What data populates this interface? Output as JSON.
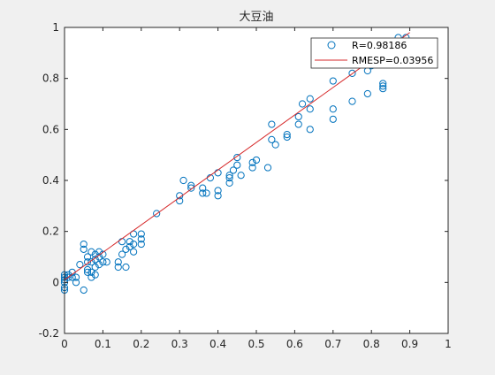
{
  "chart_data": {
    "type": "scatter",
    "title": "大豆油",
    "xlabel": "",
    "ylabel": "",
    "xlim": [
      0,
      1
    ],
    "ylim": [
      -0.2,
      1
    ],
    "xticks": [
      "0",
      "0.1",
      "0.2",
      "0.3",
      "0.4",
      "0.5",
      "0.6",
      "0.7",
      "0.8",
      "0.9",
      "1"
    ],
    "yticks": [
      "-0.2",
      "0",
      "0.2",
      "0.4",
      "0.6",
      "0.8",
      "1"
    ],
    "grid": false,
    "legend_position": "top-right",
    "series": [
      {
        "name": "R=0.98186",
        "kind": "scatter",
        "marker": "circle-open",
        "color": "#0072bd",
        "points": [
          [
            0.0,
            -0.03
          ],
          [
            0.0,
            -0.02
          ],
          [
            0.0,
            0.0
          ],
          [
            0.0,
            0.01
          ],
          [
            0.0,
            0.02
          ],
          [
            0.0,
            0.03
          ],
          [
            0.01,
            0.03
          ],
          [
            0.01,
            0.02
          ],
          [
            0.02,
            0.04
          ],
          [
            0.02,
            0.02
          ],
          [
            0.03,
            0.0
          ],
          [
            0.03,
            0.02
          ],
          [
            0.04,
            0.07
          ],
          [
            0.05,
            0.13
          ],
          [
            0.05,
            0.15
          ],
          [
            0.05,
            -0.03
          ],
          [
            0.06,
            0.08
          ],
          [
            0.06,
            0.1
          ],
          [
            0.06,
            0.05
          ],
          [
            0.06,
            0.04
          ],
          [
            0.07,
            0.08
          ],
          [
            0.07,
            0.12
          ],
          [
            0.07,
            0.04
          ],
          [
            0.07,
            0.02
          ],
          [
            0.08,
            0.11
          ],
          [
            0.08,
            0.09
          ],
          [
            0.08,
            0.06
          ],
          [
            0.08,
            0.03
          ],
          [
            0.09,
            0.1
          ],
          [
            0.09,
            0.12
          ],
          [
            0.09,
            0.07
          ],
          [
            0.1,
            0.11
          ],
          [
            0.1,
            0.08
          ],
          [
            0.11,
            0.08
          ],
          [
            0.14,
            0.06
          ],
          [
            0.14,
            0.08
          ],
          [
            0.15,
            0.11
          ],
          [
            0.15,
            0.16
          ],
          [
            0.16,
            0.06
          ],
          [
            0.16,
            0.13
          ],
          [
            0.17,
            0.16
          ],
          [
            0.17,
            0.14
          ],
          [
            0.18,
            0.12
          ],
          [
            0.18,
            0.19
          ],
          [
            0.18,
            0.15
          ],
          [
            0.2,
            0.15
          ],
          [
            0.2,
            0.17
          ],
          [
            0.2,
            0.19
          ],
          [
            0.24,
            0.27
          ],
          [
            0.3,
            0.32
          ],
          [
            0.3,
            0.34
          ],
          [
            0.31,
            0.4
          ],
          [
            0.33,
            0.37
          ],
          [
            0.33,
            0.38
          ],
          [
            0.36,
            0.35
          ],
          [
            0.36,
            0.37
          ],
          [
            0.37,
            0.35
          ],
          [
            0.38,
            0.41
          ],
          [
            0.4,
            0.36
          ],
          [
            0.4,
            0.34
          ],
          [
            0.4,
            0.43
          ],
          [
            0.43,
            0.41
          ],
          [
            0.43,
            0.42
          ],
          [
            0.43,
            0.39
          ],
          [
            0.44,
            0.44
          ],
          [
            0.45,
            0.46
          ],
          [
            0.45,
            0.49
          ],
          [
            0.46,
            0.42
          ],
          [
            0.49,
            0.45
          ],
          [
            0.49,
            0.47
          ],
          [
            0.5,
            0.48
          ],
          [
            0.53,
            0.45
          ],
          [
            0.54,
            0.56
          ],
          [
            0.54,
            0.62
          ],
          [
            0.55,
            0.54
          ],
          [
            0.58,
            0.57
          ],
          [
            0.58,
            0.58
          ],
          [
            0.61,
            0.62
          ],
          [
            0.61,
            0.65
          ],
          [
            0.62,
            0.7
          ],
          [
            0.64,
            0.6
          ],
          [
            0.64,
            0.68
          ],
          [
            0.64,
            0.72
          ],
          [
            0.7,
            0.64
          ],
          [
            0.7,
            0.68
          ],
          [
            0.7,
            0.79
          ],
          [
            0.75,
            0.71
          ],
          [
            0.75,
            0.82
          ],
          [
            0.79,
            0.74
          ],
          [
            0.79,
            0.83
          ],
          [
            0.8,
            0.85
          ],
          [
            0.83,
            0.76
          ],
          [
            0.83,
            0.77
          ],
          [
            0.83,
            0.78
          ],
          [
            0.87,
            0.96
          ],
          [
            0.89,
            0.96
          ],
          [
            0.88,
            0.92
          ]
        ]
      },
      {
        "name": "RMESP=0.03956",
        "kind": "line",
        "color": "#d62728",
        "points": [
          [
            0.0,
            0.01
          ],
          [
            0.9,
            0.98
          ]
        ]
      }
    ]
  }
}
